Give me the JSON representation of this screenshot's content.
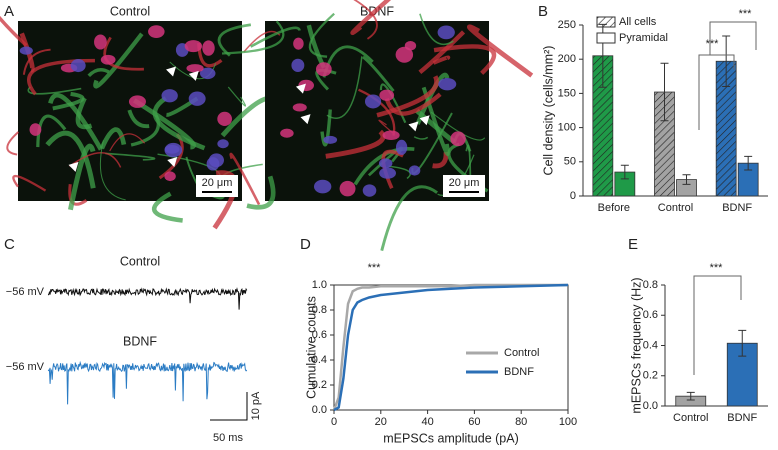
{
  "micrographs": {
    "panel": "A",
    "images": [
      {
        "title": "Control",
        "scale": "20 μm"
      },
      {
        "title": "BDNF",
        "scale": "20 μm"
      }
    ]
  },
  "traces": {
    "panel": "C",
    "items": [
      {
        "title": "Control",
        "potential": "−56 mV"
      },
      {
        "title": "BDNF",
        "potential": "−56 mV"
      }
    ],
    "scale_y": "10 pA",
    "scale_x": "50 ms"
  },
  "chart_data": [
    {
      "type": "bar",
      "panel": "B",
      "ylabel": "Cell density  (cells/mm²)",
      "categories": [
        "Before",
        "Control",
        "BDNF"
      ],
      "colors": [
        "#1f9a48",
        "#a3a3a3",
        "#2b6fb6"
      ],
      "series": [
        {
          "name": "All cells",
          "hatch": true,
          "values": [
            205,
            152,
            197
          ],
          "errors": [
            46,
            42,
            37
          ]
        },
        {
          "name": "Pyramidal",
          "hatch": false,
          "values": [
            35,
            24,
            48
          ],
          "errors": [
            10,
            7,
            10
          ]
        }
      ],
      "ylim": [
        0,
        250
      ],
      "yticks": [
        0,
        50,
        100,
        150,
        200,
        250
      ],
      "annotations": [
        "***",
        "***"
      ]
    },
    {
      "type": "line",
      "panel": "D",
      "xlabel": "mEPSCs amplitude (pA)",
      "ylabel": "Cumulative counts",
      "x": [
        0,
        2,
        4,
        6,
        8,
        10,
        12,
        15,
        20,
        30,
        40,
        50,
        60,
        80,
        100
      ],
      "series": [
        {
          "name": "Control",
          "color": "#a8a8a8",
          "values": [
            0,
            0.1,
            0.5,
            0.85,
            0.95,
            0.97,
            0.98,
            0.98,
            0.99,
            0.99,
            0.99,
            0.99,
            1.0,
            1.0,
            1.0
          ]
        },
        {
          "name": "BDNF",
          "color": "#2b6fb6",
          "values": [
            0,
            0.02,
            0.25,
            0.6,
            0.8,
            0.86,
            0.88,
            0.9,
            0.92,
            0.94,
            0.96,
            0.97,
            0.98,
            0.99,
            1.0
          ]
        }
      ],
      "xlim": [
        0,
        100
      ],
      "xticks": [
        0,
        20,
        40,
        60,
        80,
        100
      ],
      "ylim": [
        0,
        1
      ],
      "yticks": [
        {
          "value": 0,
          "label": "0.0"
        },
        0.2,
        0.4,
        0.6,
        0.8,
        {
          "value": 1,
          "label": "1.0"
        }
      ],
      "annotations": [
        "***"
      ]
    },
    {
      "type": "bar",
      "panel": "E",
      "ylabel": "mEPSCs frequency (Hz)",
      "categories": [
        "Control",
        "BDNF"
      ],
      "colors": [
        "#a3a3a3",
        "#2b6fb6"
      ],
      "series": [
        {
          "values": [
            0.065,
            0.415
          ],
          "errors": [
            0.025,
            0.085
          ]
        }
      ],
      "ylim": [
        0,
        0.8
      ],
      "yticks": [
        {
          "value": 0,
          "label": "0.0"
        },
        0.2,
        0.4,
        0.6,
        0.8
      ],
      "annotations": [
        "***"
      ]
    }
  ]
}
